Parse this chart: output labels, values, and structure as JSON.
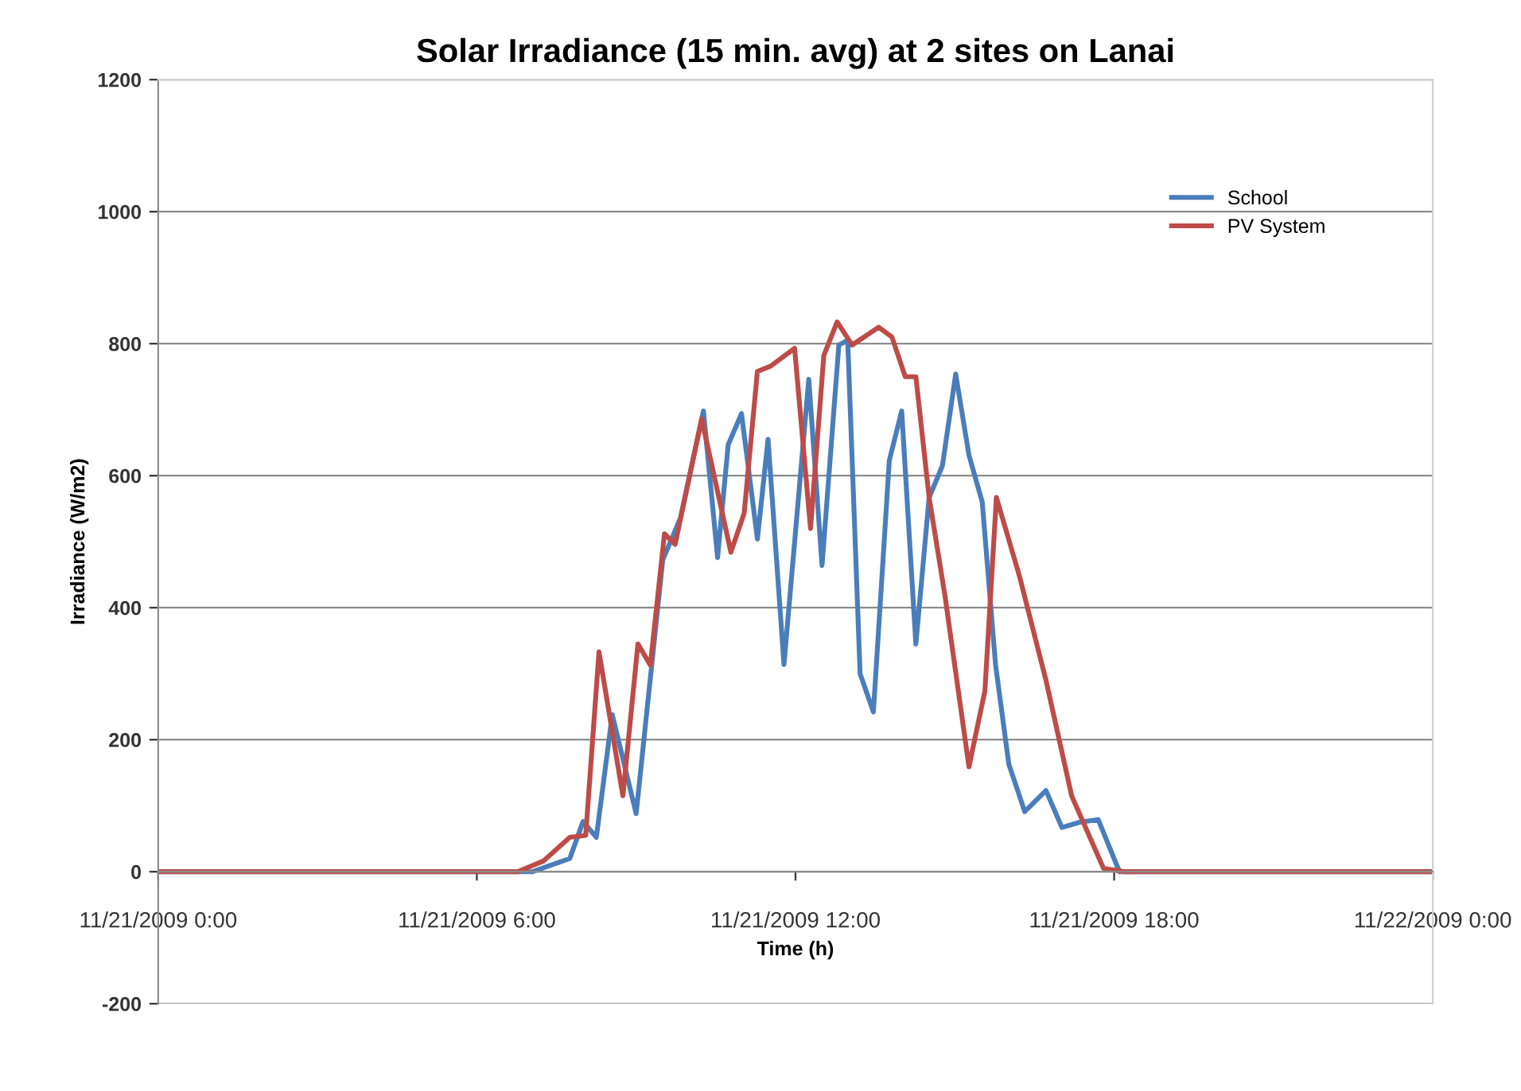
{
  "chart_data": {
    "type": "line",
    "title": "Solar Irradiance (15 min. avg) at 2 sites on Lanai",
    "xlabel": "Time (h)",
    "ylabel": "Irradiance (W/m2)",
    "xlim": [
      "2009-11-21T00:00",
      "2009-11-22T00:00"
    ],
    "xticks": [
      {
        "value": "2009-11-21T00:00",
        "label": "11/21/2009 0:00"
      },
      {
        "value": "2009-11-21T06:00",
        "label": "11/21/2009 6:00"
      },
      {
        "value": "2009-11-21T12:00",
        "label": "11/21/2009 12:00"
      },
      {
        "value": "2009-11-21T18:00",
        "label": "11/21/2009 18:00"
      },
      {
        "value": "2009-11-22T00:00",
        "label": "11/22/2009 0:00"
      }
    ],
    "ylim": [
      -200,
      1200
    ],
    "yticks": [
      -200,
      0,
      200,
      400,
      600,
      800,
      1000,
      1200
    ],
    "grid": "y",
    "legend": "top right",
    "marker": "none",
    "line_style": "solid",
    "series": [
      {
        "name": "School",
        "color": "#4a7ebb",
        "x": [
          "2009-11-21T00:00",
          "2009-11-21T07:03",
          "2009-11-21T07:45",
          "2009-11-21T08:00",
          "2009-11-21T08:15",
          "2009-11-21T08:33",
          "2009-11-21T09:00",
          "2009-11-21T09:30",
          "2009-11-21T09:50",
          "2009-11-21T10:16",
          "2009-11-21T10:32",
          "2009-11-21T10:44",
          "2009-11-21T10:59",
          "2009-11-21T11:17",
          "2009-11-21T11:29",
          "2009-11-21T11:47",
          "2009-11-21T12:15",
          "2009-11-21T12:30",
          "2009-11-21T12:49",
          "2009-11-21T12:59",
          "2009-11-21T13:13",
          "2009-11-21T13:28",
          "2009-11-21T13:46",
          "2009-11-21T14:00",
          "2009-11-21T14:16",
          "2009-11-21T14:31",
          "2009-11-21T14:46",
          "2009-11-21T15:01",
          "2009-11-21T15:16",
          "2009-11-21T15:31",
          "2009-11-21T15:46",
          "2009-11-21T16:01",
          "2009-11-21T16:19",
          "2009-11-21T16:43",
          "2009-11-21T17:01",
          "2009-11-21T17:21",
          "2009-11-21T17:42",
          "2009-11-21T18:06",
          "2009-11-22T00:00"
        ],
        "values": [
          0,
          0,
          20,
          76,
          52,
          238,
          88,
          472,
          536,
          698,
          476,
          647,
          694,
          504,
          655,
          314,
          746,
          464,
          798,
          805,
          300,
          242,
          623,
          698,
          345,
          567,
          615,
          754,
          631,
          560,
          314,
          163,
          91,
          123,
          67,
          75,
          79,
          0,
          0
        ]
      },
      {
        "name": "PV System",
        "color": "#be4b48",
        "x": [
          "2009-11-21T00:00",
          "2009-11-21T06:46",
          "2009-11-21T07:15",
          "2009-11-21T07:45",
          "2009-11-21T08:03",
          "2009-11-21T08:18",
          "2009-11-21T08:45",
          "2009-11-21T09:02",
          "2009-11-21T09:16",
          "2009-11-21T09:32",
          "2009-11-21T09:44",
          "2009-11-21T10:14",
          "2009-11-21T10:47",
          "2009-11-21T11:02",
          "2009-11-21T11:17",
          "2009-11-21T11:32",
          "2009-11-21T11:59",
          "2009-11-21T12:17",
          "2009-11-21T12:32",
          "2009-11-21T12:47",
          "2009-11-21T13:04",
          "2009-11-21T13:34",
          "2009-11-21T13:49",
          "2009-11-21T14:04",
          "2009-11-21T14:16",
          "2009-11-21T14:31",
          "2009-11-21T14:49",
          "2009-11-21T15:16",
          "2009-11-21T15:34",
          "2009-11-21T15:47",
          "2009-11-21T16:13",
          "2009-11-21T16:43",
          "2009-11-21T17:12",
          "2009-11-21T17:48",
          "2009-11-21T18:12",
          "2009-11-22T00:00"
        ],
        "values": [
          0,
          0,
          16,
          52,
          55,
          333,
          115,
          345,
          313,
          512,
          496,
          686,
          484,
          543,
          758,
          766,
          793,
          520,
          782,
          833,
          798,
          825,
          810,
          750,
          750,
          567,
          417,
          159,
          274,
          567,
          448,
          290,
          115,
          5,
          0,
          0
        ]
      }
    ]
  }
}
